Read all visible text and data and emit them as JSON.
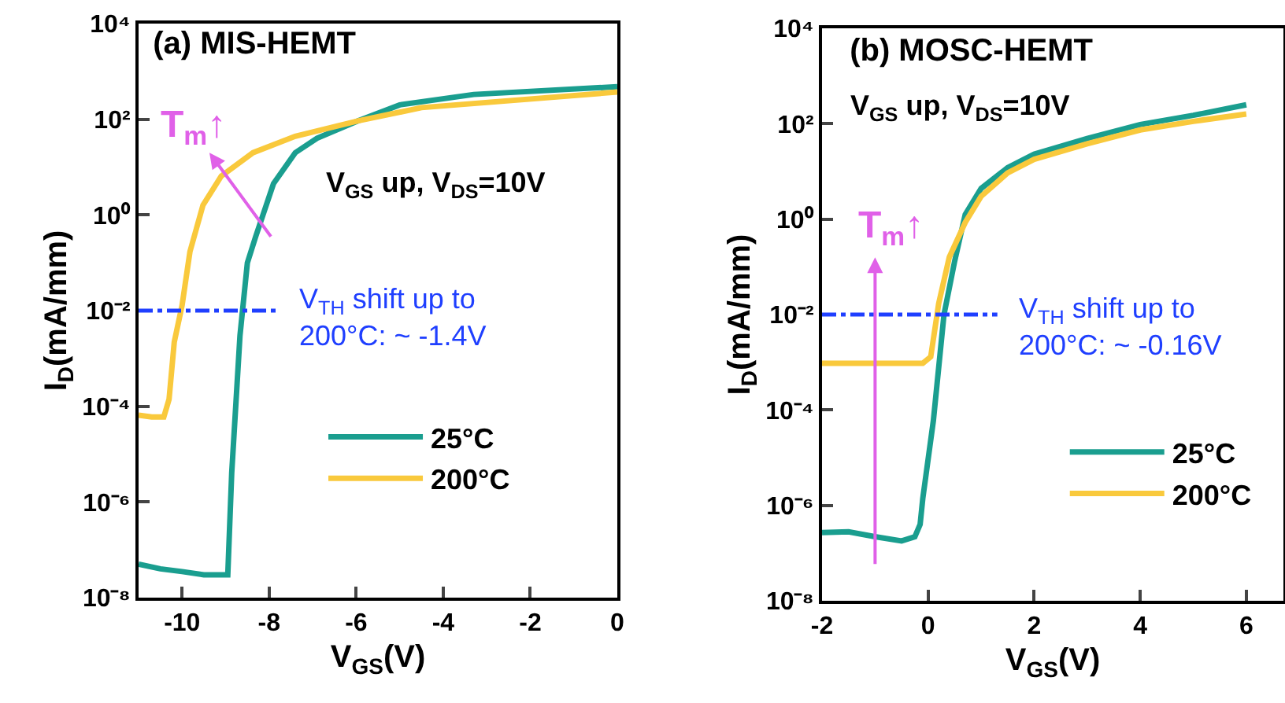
{
  "chart_data": [
    {
      "type": "line",
      "title": "(a) MIS-HEMT",
      "xlabel": "V$_{GS}$(V)",
      "ylabel": "I$_{D}$(mA/mm)",
      "annotations": [
        "V$_{GS}$ up, V$_{DS}$=10V",
        "T$_{m}$↑",
        "V$_{TH}$ shift up to\n200°C: ~ -1.4V"
      ],
      "series": [
        {
          "name": "25°C",
          "color": "#1a9e8f",
          "x": [
            -11,
            -10.5,
            -10,
            -9.5,
            -9.2,
            -8.95,
            -8.86,
            -8.67,
            -8.5,
            -8.31,
            -7.9,
            -7.4,
            -6.9,
            -5.95,
            -5,
            -3.3,
            0
          ],
          "values": [
            5e-08,
            4e-08,
            3.5e-08,
            3e-08,
            3e-08,
            3e-08,
            4e-06,
            0.003,
            0.1,
            0.35,
            4.5,
            20,
            40,
            93,
            200,
            330,
            480
          ]
        },
        {
          "name": "200°C",
          "color": "#f9c93c",
          "x": [
            -11,
            -10.7,
            -10.42,
            -10.3,
            -10.18,
            -10,
            -9.82,
            -9.52,
            -9.1,
            -8.37,
            -7.4,
            -5.95,
            -4.5,
            0
          ],
          "values": [
            6.5e-05,
            6e-05,
            6e-05,
            0.00014,
            0.0022,
            0.013,
            0.17,
            1.6,
            6.5,
            20,
            44,
            93,
            175,
            370
          ]
        }
      ],
      "xlim": [
        -11,
        0
      ],
      "xticks": [
        -10,
        -8,
        -6,
        -4,
        -2,
        0
      ],
      "ylim": [
        1e-08,
        10000.0
      ],
      "yticks": [
        {
          "value": 1e-08,
          "label": "10⁻⁸"
        },
        {
          "value": 1e-06,
          "label": "10⁻⁶"
        },
        {
          "value": 0.0001,
          "label": "10⁻⁴"
        },
        {
          "value": 0.01,
          "label": "10⁻²"
        },
        {
          "value": 1,
          "label": "10⁰"
        },
        {
          "value": 100,
          "label": "10²"
        },
        {
          "value": 10000,
          "label": "10⁴"
        }
      ],
      "log": "y",
      "grid": false,
      "legend": "bottom",
      "marker": "none",
      "line_style": "solid",
      "ref_lines": [
        {
          "axis": "y",
          "value": 0.01,
          "color": "#1f3fff",
          "line_style": "dashed"
        }
      ]
    },
    {
      "type": "line",
      "title": "(b) MOSC-HEMT",
      "xlabel": "V$_{GS}$(V)",
      "ylabel": "I$_{D}$(mA/mm)",
      "annotations": [
        "V$_{GS}$ up, V$_{DS}$=10V",
        "T$_{m}$↑",
        "V$_{TH}$ shift up to\n200°C: ~ -0.16V"
      ],
      "series": [
        {
          "name": "25°C",
          "color": "#1a9e8f",
          "x": [
            -2,
            -1.5,
            -1,
            -0.5,
            -0.25,
            -0.15,
            -0.1,
            0.1,
            0.3,
            0.5,
            0.7,
            1,
            1.5,
            2,
            3,
            4,
            5,
            6
          ],
          "values": [
            2.7e-07,
            2.8e-07,
            2.2e-07,
            1.8e-07,
            2.2e-07,
            4e-07,
            1.4e-06,
            6e-05,
            0.01,
            0.13,
            1.25,
            4.4,
            12,
            23,
            49,
            96,
            150,
            250
          ]
        },
        {
          "name": "200°C",
          "color": "#f9c93c",
          "x": [
            -2,
            -0.1,
            0.05,
            0.2,
            0.4,
            0.7,
            1,
            1.5,
            2,
            3,
            4,
            5,
            6
          ],
          "values": [
            0.00095,
            0.00095,
            0.0013,
            0.017,
            0.16,
            0.85,
            3,
            9.3,
            18,
            38,
            74,
            112,
            160
          ]
        }
      ],
      "xlim": [
        -2,
        6.7
      ],
      "xticks": [
        -2,
        0,
        2,
        4,
        6
      ],
      "ylim": [
        1e-08,
        10000.0
      ],
      "yticks": [
        {
          "value": 1e-08,
          "label": "10⁻⁸"
        },
        {
          "value": 1e-06,
          "label": "10⁻⁶"
        },
        {
          "value": 0.0001,
          "label": "10⁻⁴"
        },
        {
          "value": 0.01,
          "label": "10⁻²"
        },
        {
          "value": 1,
          "label": "10⁰"
        },
        {
          "value": 100,
          "label": "10²"
        },
        {
          "value": 10000,
          "label": "10⁴"
        }
      ],
      "log": "y",
      "grid": false,
      "legend": "bottom right",
      "marker": "none",
      "line_style": "solid",
      "ref_lines": [
        {
          "axis": "y",
          "value": 0.01,
          "color": "#1f3fff",
          "line_style": "dashed"
        }
      ]
    }
  ]
}
